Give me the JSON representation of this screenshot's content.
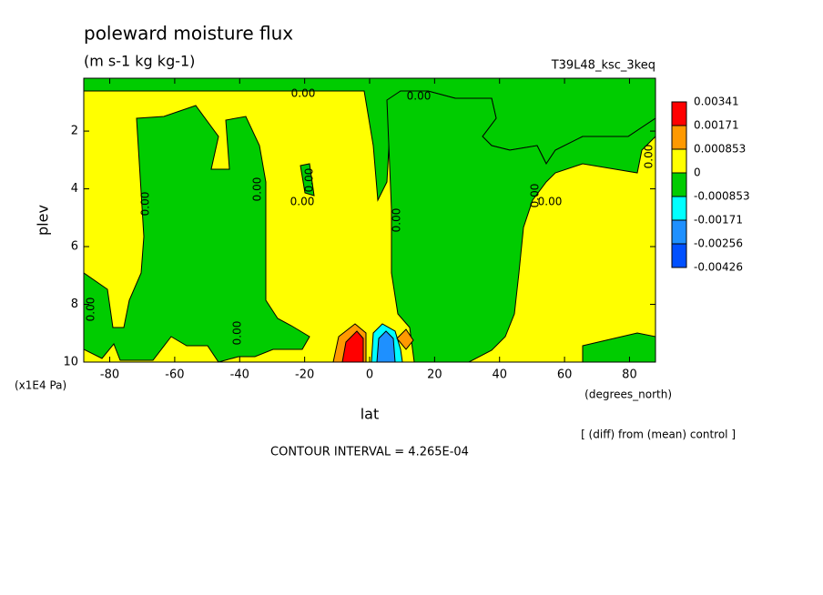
{
  "chart_data": {
    "type": "contour",
    "title": "poleward moisture flux",
    "subtitle": "(m s-1 kg kg-1)",
    "dataset": "T39L48_ksc_3keq",
    "x_label": "lat",
    "x_units": "(degrees_north)",
    "y_label": "plev",
    "y_units": "(x1E4 Pa)",
    "xlim": [
      -88,
      88
    ],
    "xticks": [
      -80,
      -60,
      -40,
      -20,
      0,
      20,
      40,
      60,
      80
    ],
    "ylim": [
      0.17,
      10
    ],
    "y_inverted": true,
    "yticks": [
      2,
      4,
      6,
      8,
      10
    ],
    "colorbar": {
      "levels": [
        0.00341,
        0.00171,
        0.000853,
        0,
        -0.000853,
        -0.00171,
        -0.00256,
        -0.00426
      ],
      "colors": [
        "#ff0000",
        "#ff9900",
        "#ffff00",
        "#00cc00",
        "#00ffff",
        "#1e90ff",
        "#0050ff"
      ]
    },
    "contour_labels": [
      "0.00",
      "0.00",
      "0.00",
      "0.00",
      "0.00",
      "0.00",
      "0.00",
      "0.00",
      "0.00",
      "0.00",
      "0.00",
      "0.00"
    ],
    "note": "[ (diff) from (mean) control ]",
    "contour_interval": "CONTOUR INTERVAL = 4.265E-04"
  }
}
